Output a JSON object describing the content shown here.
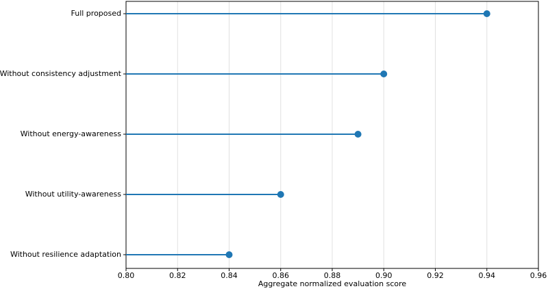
{
  "chart_data": {
    "type": "lollipop",
    "categories": [
      "Full proposed",
      "Without consistency adjustment",
      "Without energy-awareness",
      "Without utility-awareness",
      "Without resilience adaptation"
    ],
    "values": [
      0.94,
      0.9,
      0.89,
      0.86,
      0.84
    ],
    "color": "#1f77b4",
    "xlabel": "Aggregate normalized evaluation score",
    "xlim": [
      0.8,
      0.96
    ],
    "xticks": [
      {
        "value": 0.8,
        "label": "0.80"
      },
      0.82,
      0.84,
      0.86,
      0.88,
      {
        "value": 0.9,
        "label": "0.90"
      },
      0.92,
      0.94,
      0.96
    ],
    "grid": true
  }
}
